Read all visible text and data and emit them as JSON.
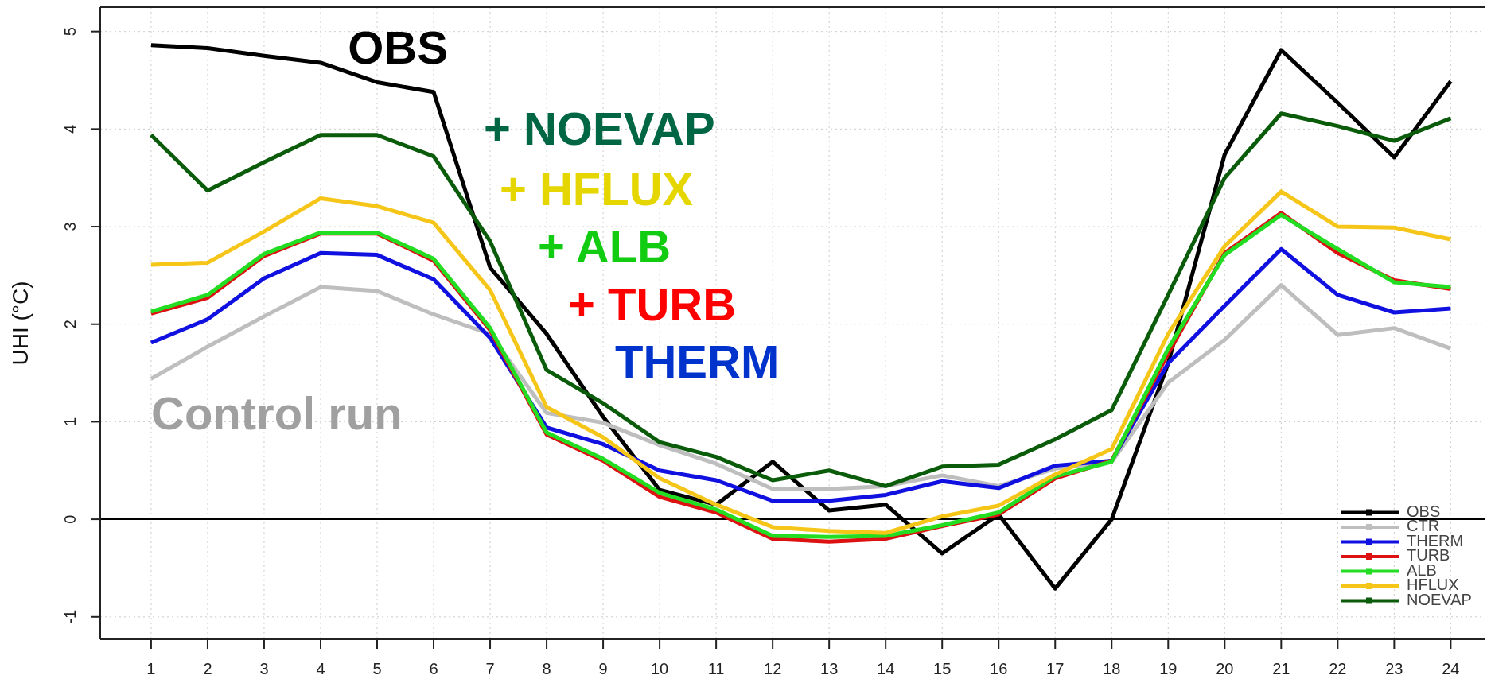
{
  "chart_data": {
    "type": "line",
    "ylabel": "UHI (°C)",
    "x": [
      1,
      2,
      3,
      4,
      5,
      6,
      7,
      8,
      9,
      10,
      11,
      12,
      13,
      14,
      15,
      16,
      17,
      18,
      19,
      20,
      21,
      22,
      23,
      24
    ],
    "xlim": [
      0.1,
      24.6
    ],
    "xticks": [
      1,
      2,
      3,
      4,
      5,
      6,
      7,
      8,
      9,
      10,
      11,
      12,
      13,
      14,
      15,
      16,
      17,
      18,
      19,
      20,
      21,
      22,
      23,
      24
    ],
    "ylim": [
      -1.23,
      5.25
    ],
    "yticks": [
      -1,
      0,
      1,
      2,
      3,
      4,
      5
    ],
    "grid": true,
    "legend": "bottom right",
    "ref_lines": [
      {
        "axis": "y",
        "value": 0,
        "color": "#000000"
      }
    ],
    "annotations": [
      "OBS",
      "+ NOEVAP",
      "+ HFLUX",
      "+ ALB",
      "+ TURB",
      "THERM",
      "Control run"
    ],
    "series": [
      {
        "name": "OBS",
        "color": "#000000",
        "values": [
          4.86,
          4.83,
          4.75,
          4.68,
          4.48,
          4.38,
          2.58,
          1.9,
          1.05,
          0.3,
          0.15,
          0.59,
          0.09,
          0.15,
          -0.35,
          0.05,
          -0.71,
          0.0,
          1.6,
          3.74,
          4.81,
          4.27,
          3.71,
          4.49
        ]
      },
      {
        "name": "CTR",
        "color": "#bebebe",
        "values": [
          1.44,
          1.77,
          2.08,
          2.38,
          2.34,
          2.1,
          1.9,
          1.09,
          0.99,
          0.76,
          0.57,
          0.31,
          0.31,
          0.34,
          0.45,
          0.34,
          0.52,
          0.59,
          1.4,
          1.84,
          2.4,
          1.89,
          1.96,
          1.75
        ]
      },
      {
        "name": "THERM",
        "color": "#1010e0",
        "values": [
          1.81,
          2.05,
          2.47,
          2.73,
          2.71,
          2.46,
          1.86,
          0.94,
          0.77,
          0.5,
          0.4,
          0.19,
          0.19,
          0.25,
          0.39,
          0.32,
          0.55,
          0.6,
          1.6,
          2.19,
          2.77,
          2.3,
          2.12,
          2.16
        ]
      },
      {
        "name": "TURB",
        "color": "#dd1111",
        "values": [
          2.11,
          2.27,
          2.7,
          2.93,
          2.93,
          2.65,
          1.94,
          0.87,
          0.6,
          0.23,
          0.07,
          -0.2,
          -0.23,
          -0.2,
          -0.07,
          0.05,
          0.42,
          0.6,
          1.7,
          2.73,
          3.14,
          2.73,
          2.45,
          2.36
        ]
      },
      {
        "name": "ALB",
        "color": "#22dd22",
        "values": [
          2.13,
          2.3,
          2.72,
          2.94,
          2.94,
          2.67,
          1.96,
          0.89,
          0.62,
          0.27,
          0.1,
          -0.17,
          -0.18,
          -0.17,
          -0.06,
          0.07,
          0.44,
          0.59,
          1.75,
          2.71,
          3.12,
          2.77,
          2.43,
          2.38
        ]
      },
      {
        "name": "HFLUX",
        "color": "#f5c518",
        "values": [
          2.61,
          2.63,
          2.95,
          3.29,
          3.21,
          3.04,
          2.35,
          1.15,
          0.84,
          0.42,
          0.15,
          -0.08,
          -0.12,
          -0.14,
          0.03,
          0.14,
          0.46,
          0.72,
          1.9,
          2.8,
          3.36,
          3.0,
          2.99,
          2.87
        ]
      },
      {
        "name": "NOEVAP",
        "color": "#0a5c0a",
        "values": [
          3.94,
          3.37,
          3.66,
          3.94,
          3.94,
          3.72,
          2.85,
          1.53,
          1.19,
          0.79,
          0.64,
          0.4,
          0.5,
          0.34,
          0.54,
          0.56,
          0.82,
          1.12,
          2.3,
          3.5,
          4.16,
          4.03,
          3.88,
          4.11
        ]
      }
    ]
  }
}
